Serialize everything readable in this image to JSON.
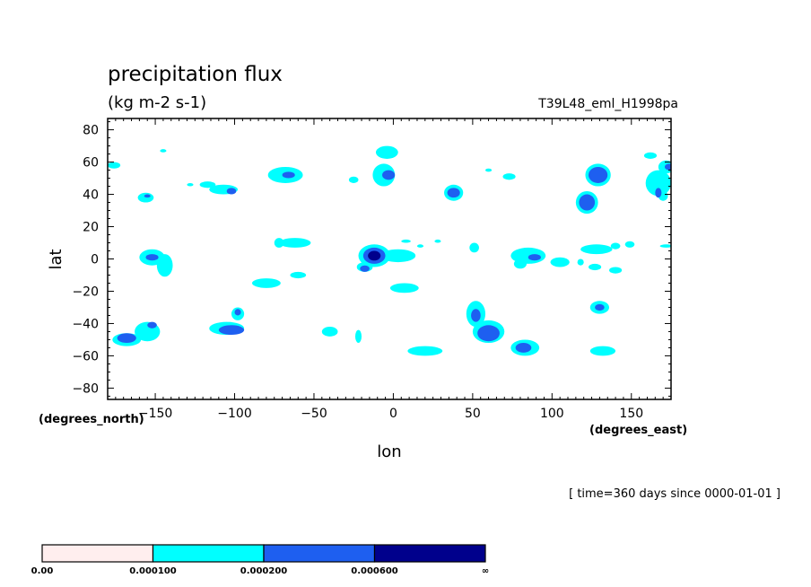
{
  "chart_data": {
    "type": "heatmap",
    "title": "precipitation flux",
    "units": "(kg m-2 s-1)",
    "run_label": "T39L48_eml_H1998pa",
    "xlabel": "lon",
    "ylabel": "lat",
    "x_units": "(degrees_east)",
    "y_units": "(degrees_north)",
    "time_label": "[ time=360 days since 0000-01-01 ]",
    "xlim": [
      -180,
      175
    ],
    "ylim": [
      -87,
      87
    ],
    "x_ticks": [
      -150,
      -100,
      -50,
      0,
      50,
      100,
      150
    ],
    "x_tick_labels": [
      "−150",
      "−100",
      "−50",
      "0",
      "50",
      "100",
      "150"
    ],
    "y_ticks": [
      80,
      60,
      40,
      20,
      0,
      -20,
      -40,
      -60,
      -80
    ],
    "y_tick_labels": [
      "80",
      "60",
      "40",
      "20",
      "0",
      "−20",
      "−40",
      "−60",
      "−80"
    ],
    "grid": false,
    "colorbar": {
      "levels": [
        "0.00",
        "0.000100",
        "0.000200",
        "0.000600",
        "∞"
      ],
      "colors": [
        "#ffeeee",
        "#00ffff",
        "#1e5ff0",
        "#00008c"
      ]
    },
    "contours": [
      {
        "level": 1,
        "color": "#00ffff",
        "regions": [
          {
            "lon": -4,
            "lat": 66,
            "rlon": 7,
            "rlat": 4
          },
          {
            "lon": -6,
            "lat": 52,
            "rlon": 7,
            "rlat": 7
          },
          {
            "lon": -68,
            "lat": 52,
            "rlon": 11,
            "rlat": 5
          },
          {
            "lon": -107,
            "lat": 43,
            "rlon": 9,
            "rlat": 3
          },
          {
            "lon": -117,
            "lat": 46,
            "rlon": 5,
            "rlat": 2
          },
          {
            "lon": -156,
            "lat": 38,
            "rlon": 5,
            "rlat": 3
          },
          {
            "lon": -176,
            "lat": 58,
            "rlon": 4,
            "rlat": 2
          },
          {
            "lon": -145,
            "lat": 67,
            "rlon": 2,
            "rlat": 1
          },
          {
            "lon": -128,
            "lat": 46,
            "rlon": 2,
            "rlat": 1
          },
          {
            "lon": -25,
            "lat": 49,
            "rlon": 3,
            "rlat": 2
          },
          {
            "lon": 38,
            "lat": 41,
            "rlon": 6,
            "rlat": 5
          },
          {
            "lon": 60,
            "lat": 55,
            "rlon": 2,
            "rlat": 1
          },
          {
            "lon": 73,
            "lat": 51,
            "rlon": 4,
            "rlat": 2
          },
          {
            "lon": 129,
            "lat": 52,
            "rlon": 8,
            "rlat": 7
          },
          {
            "lon": 122,
            "lat": 35,
            "rlon": 7,
            "rlat": 7
          },
          {
            "lon": 167,
            "lat": 47,
            "rlon": 8,
            "rlat": 8
          },
          {
            "lon": 172,
            "lat": 57,
            "rlon": 5,
            "rlat": 4
          },
          {
            "lon": 162,
            "lat": 64,
            "rlon": 4,
            "rlat": 2
          },
          {
            "lon": 170,
            "lat": 39,
            "rlon": 3,
            "rlat": 3
          },
          {
            "lon": -152,
            "lat": 1,
            "rlon": 8,
            "rlat": 5
          },
          {
            "lon": -144,
            "lat": -4,
            "rlon": 5,
            "rlat": 7
          },
          {
            "lon": -62,
            "lat": 10,
            "rlon": 10,
            "rlat": 3
          },
          {
            "lon": -72,
            "lat": 10,
            "rlon": 3,
            "rlat": 3
          },
          {
            "lon": -12,
            "lat": 2,
            "rlon": 10,
            "rlat": 7
          },
          {
            "lon": 3,
            "lat": 2,
            "rlon": 11,
            "rlat": 4
          },
          {
            "lon": -18,
            "lat": -5,
            "rlon": 5,
            "rlat": 3
          },
          {
            "lon": 8,
            "lat": 11,
            "rlon": 3,
            "rlat": 1
          },
          {
            "lon": 17,
            "lat": 8,
            "rlon": 2,
            "rlat": 1
          },
          {
            "lon": 28,
            "lat": 11,
            "rlon": 2,
            "rlat": 1
          },
          {
            "lon": 51,
            "lat": 7,
            "rlon": 3,
            "rlat": 3
          },
          {
            "lon": 85,
            "lat": 2,
            "rlon": 11,
            "rlat": 5
          },
          {
            "lon": 80,
            "lat": -3,
            "rlon": 4,
            "rlat": 3
          },
          {
            "lon": 105,
            "lat": -2,
            "rlon": 6,
            "rlat": 3
          },
          {
            "lon": 128,
            "lat": 6,
            "rlon": 10,
            "rlat": 3
          },
          {
            "lon": 140,
            "lat": 8,
            "rlon": 3,
            "rlat": 2
          },
          {
            "lon": 149,
            "lat": 9,
            "rlon": 3,
            "rlat": 2
          },
          {
            "lon": 172,
            "lat": 8,
            "rlon": 4,
            "rlat": 1
          },
          {
            "lon": 118,
            "lat": -2,
            "rlon": 2,
            "rlat": 2
          },
          {
            "lon": 127,
            "lat": -5,
            "rlon": 4,
            "rlat": 2
          },
          {
            "lon": 140,
            "lat": -7,
            "rlon": 4,
            "rlat": 2
          },
          {
            "lon": -80,
            "lat": -15,
            "rlon": 9,
            "rlat": 3
          },
          {
            "lon": -60,
            "lat": -10,
            "rlon": 5,
            "rlat": 2
          },
          {
            "lon": 7,
            "lat": -18,
            "rlon": 9,
            "rlat": 3
          },
          {
            "lon": -155,
            "lat": -45,
            "rlon": 8,
            "rlat": 6
          },
          {
            "lon": -168,
            "lat": -50,
            "rlon": 9,
            "rlat": 4
          },
          {
            "lon": -98,
            "lat": -34,
            "rlon": 4,
            "rlat": 4
          },
          {
            "lon": -105,
            "lat": -43,
            "rlon": 11,
            "rlat": 4
          },
          {
            "lon": -40,
            "lat": -45,
            "rlon": 5,
            "rlat": 3
          },
          {
            "lon": -22,
            "lat": -48,
            "rlon": 2,
            "rlat": 4
          },
          {
            "lon": 20,
            "lat": -57,
            "rlon": 11,
            "rlat": 3
          },
          {
            "lon": 52,
            "lat": -34,
            "rlon": 6,
            "rlat": 8
          },
          {
            "lon": 60,
            "lat": -45,
            "rlon": 10,
            "rlat": 7
          },
          {
            "lon": 83,
            "lat": -55,
            "rlon": 9,
            "rlat": 5
          },
          {
            "lon": 130,
            "lat": -30,
            "rlon": 6,
            "rlat": 4
          },
          {
            "lon": 132,
            "lat": -57,
            "rlon": 8,
            "rlat": 3
          }
        ]
      },
      {
        "level": 2,
        "color": "#1e5ff0",
        "regions": [
          {
            "lon": -3,
            "lat": 52,
            "rlon": 4,
            "rlat": 3
          },
          {
            "lon": -66,
            "lat": 52,
            "rlon": 4,
            "rlat": 2
          },
          {
            "lon": -102,
            "lat": 42,
            "rlon": 3,
            "rlat": 2
          },
          {
            "lon": -155,
            "lat": 39,
            "rlon": 2,
            "rlat": 1
          },
          {
            "lon": 38,
            "lat": 41,
            "rlon": 4,
            "rlat": 3
          },
          {
            "lon": 129,
            "lat": 52,
            "rlon": 6,
            "rlat": 5
          },
          {
            "lon": 122,
            "lat": 35,
            "rlon": 5,
            "rlat": 5
          },
          {
            "lon": 174,
            "lat": 57,
            "rlon": 3,
            "rlat": 2
          },
          {
            "lon": 167,
            "lat": 41,
            "rlon": 2,
            "rlat": 3
          },
          {
            "lon": -152,
            "lat": 1,
            "rlon": 4,
            "rlat": 2
          },
          {
            "lon": -12,
            "lat": 2,
            "rlon": 7,
            "rlat": 5
          },
          {
            "lon": -18,
            "lat": -6,
            "rlon": 3,
            "rlat": 2
          },
          {
            "lon": 89,
            "lat": 1,
            "rlon": 4,
            "rlat": 2
          },
          {
            "lon": -168,
            "lat": -49,
            "rlon": 6,
            "rlat": 3
          },
          {
            "lon": -152,
            "lat": -41,
            "rlon": 3,
            "rlat": 2
          },
          {
            "lon": -102,
            "lat": -44,
            "rlon": 8,
            "rlat": 3
          },
          {
            "lon": -98,
            "lat": -33,
            "rlon": 2,
            "rlat": 2
          },
          {
            "lon": 60,
            "lat": -46,
            "rlon": 7,
            "rlat": 5
          },
          {
            "lon": 52,
            "lat": -35,
            "rlon": 3,
            "rlat": 4
          },
          {
            "lon": 82,
            "lat": -55,
            "rlon": 5,
            "rlat": 3
          },
          {
            "lon": 130,
            "lat": -30,
            "rlon": 3,
            "rlat": 2
          }
        ]
      },
      {
        "level": 3,
        "color": "#00008c",
        "regions": [
          {
            "lon": -12,
            "lat": 2,
            "rlon": 4,
            "rlat": 3
          }
        ]
      }
    ]
  }
}
